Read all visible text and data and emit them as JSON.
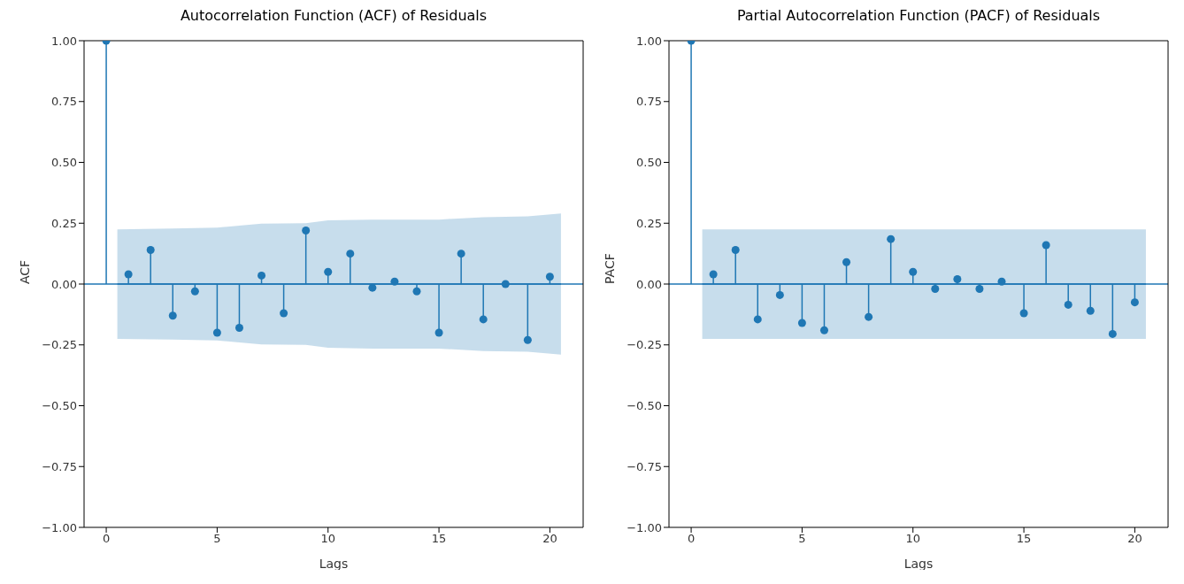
{
  "chart_data": [
    {
      "type": "lollipop",
      "title": "Autocorrelation Function (ACF) of Residuals",
      "xlabel": "Lags",
      "ylabel": "ACF",
      "xlim": [
        -1,
        21.5
      ],
      "xticks": [
        0,
        5,
        10,
        15,
        20
      ],
      "ylim": [
        -1,
        1
      ],
      "yticks": [
        {
          "value": -1,
          "label": "−1.00"
        },
        {
          "value": -0.75,
          "label": "−0.75"
        },
        {
          "value": -0.5,
          "label": "−0.50"
        },
        {
          "value": -0.25,
          "label": "−0.25"
        },
        {
          "value": 0,
          "label": "0.00"
        },
        {
          "value": 0.25,
          "label": "0.25"
        },
        {
          "value": 0.5,
          "label": "0.50"
        },
        {
          "value": 0.75,
          "label": "0.75"
        },
        {
          "value": 1,
          "label": "1.00"
        }
      ],
      "marker": "circle",
      "grid": false,
      "legend": false,
      "ref_lines": [
        {
          "axis": "y",
          "value": 0,
          "color": "#1f77b4"
        }
      ],
      "series": [
        {
          "type": "line",
          "marker": "none",
          "x": [
            0.5,
            3,
            5,
            7,
            9,
            10,
            12,
            15,
            17,
            19,
            20.5
          ],
          "values": [
            0,
            0,
            0,
            0,
            0,
            0,
            0,
            0,
            0,
            0,
            0
          ],
          "lower": [
            -0.225,
            -0.228,
            -0.232,
            -0.248,
            -0.25,
            -0.262,
            -0.265,
            -0.265,
            -0.275,
            -0.278,
            -0.29
          ],
          "upper": [
            0.225,
            0.228,
            0.232,
            0.248,
            0.25,
            0.262,
            0.265,
            0.265,
            0.275,
            0.278,
            0.29
          ],
          "color": "#1f77b4"
        },
        {
          "type": "lollipop",
          "x": [
            0,
            1,
            2,
            3,
            4,
            5,
            6,
            7,
            8,
            9,
            10,
            11,
            12,
            13,
            14,
            15,
            16,
            17,
            18,
            19,
            20
          ],
          "values": [
            1,
            0.04,
            0.14,
            -0.13,
            -0.03,
            -0.2,
            -0.18,
            0.035,
            -0.12,
            0.22,
            0.05,
            0.125,
            -0.015,
            0.01,
            -0.03,
            -0.2,
            0.125,
            -0.145,
            0,
            -0.23,
            0.03
          ],
          "color": "#1f77b4"
        }
      ]
    },
    {
      "type": "lollipop",
      "title": "Partial Autocorrelation Function (PACF) of Residuals",
      "xlabel": "Lags",
      "ylabel": "PACF",
      "xlim": [
        -1,
        21.5
      ],
      "xticks": [
        0,
        5,
        10,
        15,
        20
      ],
      "ylim": [
        -1,
        1
      ],
      "yticks": [
        {
          "value": -1,
          "label": "−1.00"
        },
        {
          "value": -0.75,
          "label": "−0.75"
        },
        {
          "value": -0.5,
          "label": "−0.50"
        },
        {
          "value": -0.25,
          "label": "−0.25"
        },
        {
          "value": 0,
          "label": "0.00"
        },
        {
          "value": 0.25,
          "label": "0.25"
        },
        {
          "value": 0.5,
          "label": "0.50"
        },
        {
          "value": 0.75,
          "label": "0.75"
        },
        {
          "value": 1,
          "label": "1.00"
        }
      ],
      "marker": "circle",
      "grid": false,
      "legend": false,
      "ref_lines": [
        {
          "axis": "y",
          "value": 0,
          "color": "#1f77b4"
        }
      ],
      "series": [
        {
          "type": "line",
          "marker": "none",
          "x": [
            0.5,
            20.5
          ],
          "values": [
            0,
            0
          ],
          "lower": [
            -0.225,
            -0.225
          ],
          "upper": [
            0.225,
            0.225
          ],
          "color": "#1f77b4"
        },
        {
          "type": "lollipop",
          "x": [
            0,
            1,
            2,
            3,
            4,
            5,
            6,
            7,
            8,
            9,
            10,
            11,
            12,
            13,
            14,
            15,
            16,
            17,
            18,
            19,
            20
          ],
          "values": [
            1,
            0.04,
            0.14,
            -0.145,
            -0.045,
            -0.16,
            -0.19,
            0.09,
            -0.135,
            0.185,
            0.05,
            -0.02,
            0.02,
            -0.02,
            0.01,
            -0.12,
            0.16,
            -0.085,
            -0.11,
            -0.205,
            -0.075
          ],
          "color": "#1f77b4"
        }
      ]
    }
  ]
}
